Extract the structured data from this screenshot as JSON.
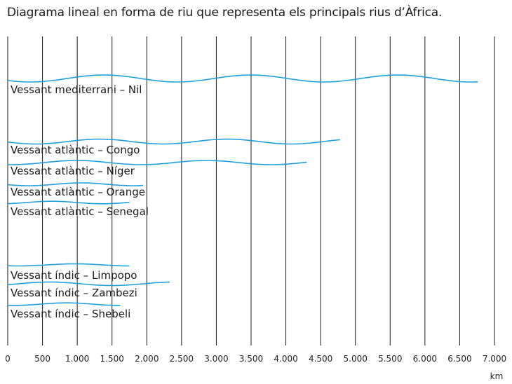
{
  "title": "Diagrama lineal en forma de riu que representa els principals rius d’Àfrica.",
  "unit_label": "km",
  "colors": {
    "river": "#1fa0dd",
    "grid": "#1a1a1a"
  },
  "chart_data": {
    "type": "line",
    "title": "Diagrama lineal en forma de riu que representa els principals rius d’Àfrica.",
    "xlabel": "km",
    "xlim": [
      0,
      7000
    ],
    "x_ticks": [
      0,
      500,
      1000,
      1500,
      2000,
      2500,
      3000,
      3500,
      4000,
      4500,
      5000,
      5500,
      6000,
      6500,
      7000
    ],
    "x_tick_labels": [
      "0",
      "500",
      "1.000",
      "1.500",
      "2.000",
      "2.500",
      "3.000",
      "3.500",
      "4.000",
      "4.500",
      "5.000",
      "5.500",
      "6.000",
      "6.500",
      "7.000"
    ],
    "grid": true,
    "groups": [
      "Vessant mediterrani",
      "Vessant atlàntic",
      "Vessant índic"
    ],
    "rivers": [
      {
        "label": "Vessant mediterrani – Nil",
        "length": 6760
      },
      {
        "label": "Vessant atlàntic – Congo",
        "length": 4780
      },
      {
        "label": "Vessant atlàntic – Níger",
        "length": 4300
      },
      {
        "label": "Vessant atlàntic – Orange",
        "length": 1950
      },
      {
        "label": "Vessant atlàntic – Senegal",
        "length": 1750
      },
      {
        "label": "Vessant índic – Limpopo",
        "length": 1750
      },
      {
        "label": "Vessant índic – Zambezi",
        "length": 2330
      },
      {
        "label": "Vessant índic – Shebeli",
        "length": 1620
      }
    ]
  }
}
